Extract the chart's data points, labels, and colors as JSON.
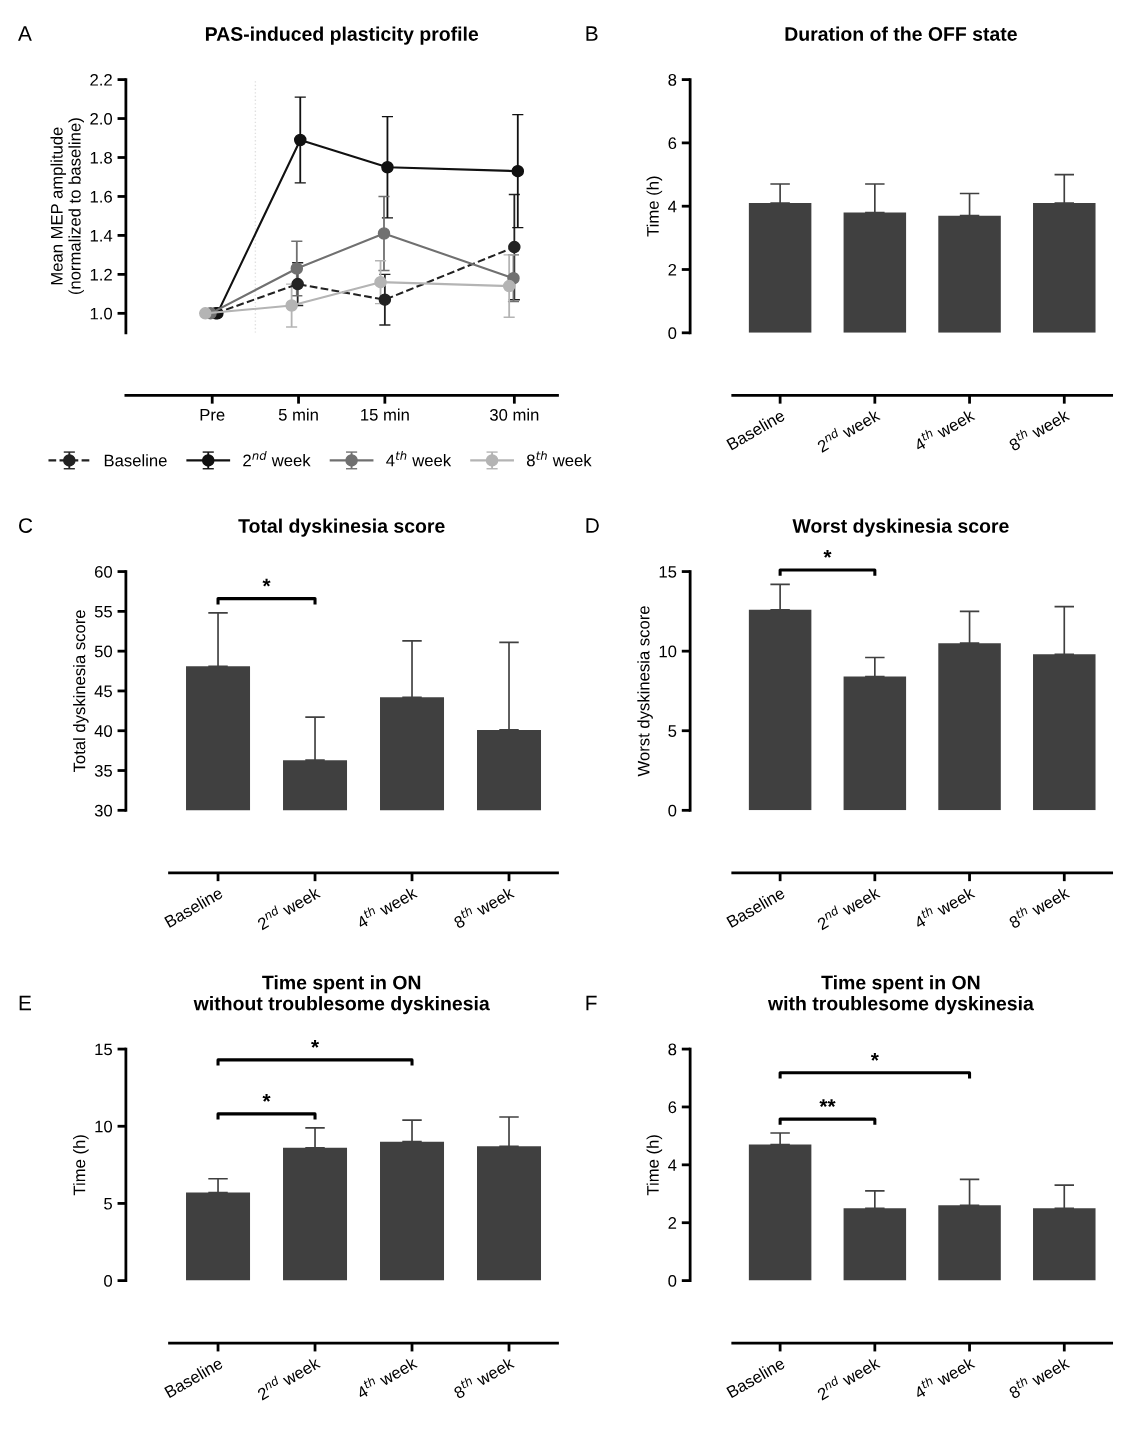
{
  "chart_data": [
    {
      "type": "line",
      "title": "PAS-induced plasticity profile",
      "ylabel": "Mean MEP amplitude\n(normalized to baseline)",
      "annotations": [
        "A"
      ],
      "marker": "circle",
      "legend": "bottom",
      "grid": false,
      "xlim": [
        -15,
        35
      ],
      "xticks": [
        {
          "value": -5,
          "label": "Pre"
        },
        {
          "value": 5,
          "label": "5 min"
        },
        {
          "value": 15,
          "label": "15 min"
        },
        {
          "value": 30,
          "label": "30 min"
        }
      ],
      "ylim": [
        0.9,
        2.2
      ],
      "yticks": [
        {
          "value": 1,
          "label": "1.0"
        },
        1.2,
        1.4,
        1.6,
        1.8,
        {
          "value": 2,
          "label": "2.0"
        },
        2.2
      ],
      "ref_lines": [
        {
          "axis": "x",
          "value": 0,
          "label": null,
          "color": "#e0e0e0",
          "line_style": "dotted"
        }
      ],
      "series": [
        {
          "name": "Baseline",
          "color": "#222222",
          "line_style": "dashed",
          "x": [
            -4.6,
            4.9,
            15,
            30
          ],
          "values": [
            1.0,
            1.15,
            1.07,
            1.34
          ],
          "errors": [
            null,
            0.11,
            0.13,
            0.27
          ]
        },
        {
          "name": "2$^{nd}$ week",
          "color": "#111111",
          "line_style": "solid",
          "x": [
            -4.4,
            5.2,
            15.3,
            30.4
          ],
          "values": [
            1.0,
            1.89,
            1.75,
            1.73
          ],
          "errors": [
            null,
            [
              1.67,
              2.11
            ],
            [
              1.49,
              2.01
            ],
            [
              1.44,
              2.02
            ]
          ]
        },
        {
          "name": "4$^{th}$ week",
          "color": "#707070",
          "line_style": "solid",
          "x": [
            -5.2,
            4.8,
            14.9,
            29.9
          ],
          "values": [
            1.0,
            1.23,
            1.41,
            1.18
          ],
          "errors": [
            null,
            0.14,
            0.19,
            0.12
          ]
        },
        {
          "name": "8$^{th}$ week",
          "color": "#b4b4b4",
          "line_style": "solid",
          "x": [
            -5.8,
            4.2,
            14.5,
            29.4
          ],
          "values": [
            1.0,
            1.04,
            1.16,
            1.14
          ],
          "errors": [
            null,
            0.11,
            0.11,
            0.16
          ]
        }
      ]
    },
    {
      "type": "bar",
      "title": "Duration of the OFF state",
      "ylabel": "Time (h)",
      "annotations": [
        "B"
      ],
      "grid": false,
      "color": "#404040",
      "categories": [
        "Baseline",
        "2$^{nd}$ week",
        "4$^{th}$ week",
        "8$^{th}$ week"
      ],
      "values": [
        4.1,
        3.8,
        3.7,
        4.1
      ],
      "errors": [
        [
          4.1,
          4.7
        ],
        [
          3.8,
          4.7
        ],
        [
          3.7,
          4.4
        ],
        [
          4.1,
          5.0
        ]
      ],
      "ylim": [
        0,
        8
      ],
      "yticks": [
        0,
        2,
        4,
        6,
        8
      ]
    },
    {
      "type": "bar",
      "title": "Total dyskinesia score",
      "ylabel": "Total dyskinesia score",
      "grid": false,
      "color": "#404040",
      "annotations": [
        "C",
        "*"
      ],
      "categories": [
        "Baseline",
        "2$^{nd}$ week",
        "4$^{th}$ week",
        "8$^{th}$ week"
      ],
      "values": [
        48.1,
        36.3,
        44.2,
        40.1
      ],
      "errors": [
        [
          48.1,
          54.8
        ],
        [
          36.3,
          41.7
        ],
        [
          44.2,
          51.3
        ],
        [
          40.1,
          51.1
        ]
      ],
      "ylim": [
        30,
        60
      ],
      "yticks": [
        30,
        35,
        40,
        45,
        50,
        55,
        60
      ]
    },
    {
      "type": "bar",
      "title": "Worst dyskinesia score",
      "ylabel": "Worst dyskinesia score",
      "grid": false,
      "color": "#404040",
      "annotations": [
        "D",
        "*"
      ],
      "categories": [
        "Baseline",
        "2$^{nd}$ week",
        "4$^{th}$ week",
        "8$^{th}$ week"
      ],
      "values": [
        12.6,
        8.4,
        10.5,
        9.8
      ],
      "errors": [
        [
          12.6,
          14.2
        ],
        [
          8.4,
          9.6
        ],
        [
          10.5,
          12.5
        ],
        [
          9.8,
          12.8
        ]
      ],
      "ylim": [
        0,
        15
      ],
      "yticks": [
        0,
        5,
        10,
        15
      ]
    },
    {
      "type": "bar",
      "title": "Time spent in ON\nwithout troublesome dyskinesia",
      "ylabel": "Time (h)",
      "grid": false,
      "color": "#404040",
      "annotations": [
        "E",
        "*",
        "*"
      ],
      "categories": [
        "Baseline",
        "2$^{nd}$ week",
        "4$^{th}$ week",
        "8$^{th}$ week"
      ],
      "values": [
        5.7,
        8.6,
        9.0,
        8.7
      ],
      "errors": [
        [
          5.7,
          6.6
        ],
        [
          8.6,
          9.9
        ],
        [
          9.0,
          10.4
        ],
        [
          8.7,
          10.6
        ]
      ],
      "ylim": [
        0,
        15
      ],
      "yticks": [
        0,
        5,
        10,
        15
      ]
    },
    {
      "type": "bar",
      "title": "Time spent in ON\nwith troublesome dyskinesia",
      "ylabel": "Time (h)",
      "grid": false,
      "color": "#404040",
      "annotations": [
        "F",
        "**",
        "*"
      ],
      "categories": [
        "Baseline",
        "2$^{nd}$ week",
        "4$^{th}$ week",
        "8$^{th}$ week"
      ],
      "values": [
        4.7,
        2.5,
        2.6,
        2.5
      ],
      "errors": [
        [
          4.7,
          5.1
        ],
        [
          2.5,
          3.1
        ],
        [
          2.6,
          3.5
        ],
        [
          2.5,
          3.3
        ]
      ],
      "ylim": [
        0,
        8
      ],
      "yticks": [
        0,
        2,
        4,
        6,
        8
      ]
    }
  ]
}
